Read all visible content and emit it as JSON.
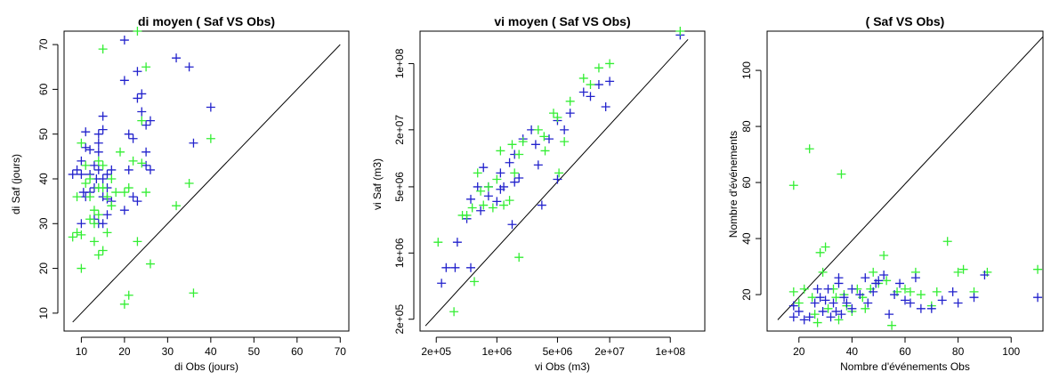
{
  "colors": {
    "series_green": "#33ee33",
    "series_blue": "#2222cc",
    "axes": "#000000"
  },
  "chart_data": [
    {
      "type": "scatter",
      "title": "di moyen ( Saf  VS  Obs)",
      "xlabel": "di Obs  (jours)",
      "ylabel": "di Saf  (jours)",
      "xlim": [
        6,
        72
      ],
      "ylim": [
        6,
        73
      ],
      "xticks": [
        10,
        20,
        30,
        40,
        50,
        60,
        70
      ],
      "yticks": [
        10,
        20,
        30,
        40,
        50,
        60,
        70
      ],
      "xtick_labels": [
        "10",
        "20",
        "30",
        "40",
        "50",
        "60",
        "70"
      ],
      "ytick_labels": [
        "10",
        "20",
        "30",
        "40",
        "50",
        "60",
        "70"
      ],
      "log": false,
      "reference_line": [
        [
          8,
          8
        ],
        [
          70,
          70
        ]
      ],
      "series": [
        {
          "color": "#2222cc",
          "points": [
            [
              8,
              41
            ],
            [
              9,
              42
            ],
            [
              10,
              30
            ],
            [
              10,
              41
            ],
            [
              10,
              44
            ],
            [
              10.5,
              37
            ],
            [
              11,
              47
            ],
            [
              11,
              36
            ],
            [
              11,
              50.5
            ],
            [
              12,
              46.5
            ],
            [
              12,
              41
            ],
            [
              12,
              37
            ],
            [
              13,
              43
            ],
            [
              13,
              38
            ],
            [
              13,
              31
            ],
            [
              13.5,
              40
            ],
            [
              14,
              50
            ],
            [
              14,
              48
            ],
            [
              14,
              46
            ],
            [
              14,
              42
            ],
            [
              14,
              30
            ],
            [
              15,
              54
            ],
            [
              15,
              51
            ],
            [
              15,
              40
            ],
            [
              15,
              36
            ],
            [
              15,
              30
            ],
            [
              16,
              38
            ],
            [
              16,
              35.5
            ],
            [
              16,
              41
            ],
            [
              16,
              32
            ],
            [
              17,
              35
            ],
            [
              17,
              42
            ],
            [
              20,
              71
            ],
            [
              20,
              62
            ],
            [
              20,
              33
            ],
            [
              21,
              50
            ],
            [
              21,
              42
            ],
            [
              22,
              36
            ],
            [
              22,
              49
            ],
            [
              23,
              64
            ],
            [
              23,
              58
            ],
            [
              23,
              35
            ],
            [
              24,
              59
            ],
            [
              24,
              55
            ],
            [
              25,
              46
            ],
            [
              25,
              43
            ],
            [
              25,
              52
            ],
            [
              26,
              42
            ],
            [
              26,
              53
            ],
            [
              32,
              67
            ],
            [
              35,
              65
            ],
            [
              36,
              48
            ],
            [
              40,
              56
            ]
          ]
        },
        {
          "color": "#33ee33",
          "points": [
            [
              8,
              27
            ],
            [
              9,
              36
            ],
            [
              9,
              28
            ],
            [
              10,
              27.5
            ],
            [
              10,
              20
            ],
            [
              10,
              48
            ],
            [
              11,
              43
            ],
            [
              11,
              39
            ],
            [
              12,
              31
            ],
            [
              12,
              36
            ],
            [
              12,
              40
            ],
            [
              13,
              30
            ],
            [
              13,
              26
            ],
            [
              13,
              33
            ],
            [
              14,
              44
            ],
            [
              14,
              38
            ],
            [
              14,
              32
            ],
            [
              14,
              23
            ],
            [
              15,
              69
            ],
            [
              15,
              43
            ],
            [
              15,
              38
            ],
            [
              15,
              24
            ],
            [
              16,
              28
            ],
            [
              16,
              36
            ],
            [
              17,
              34
            ],
            [
              17,
              40
            ],
            [
              18,
              37
            ],
            [
              19,
              46
            ],
            [
              20,
              37
            ],
            [
              20,
              12
            ],
            [
              21,
              14
            ],
            [
              21,
              38
            ],
            [
              22,
              44
            ],
            [
              23,
              73
            ],
            [
              23,
              26
            ],
            [
              24,
              53
            ],
            [
              24,
              43.5
            ],
            [
              25,
              37
            ],
            [
              25,
              65
            ],
            [
              26,
              21
            ],
            [
              32,
              34
            ],
            [
              35,
              39
            ],
            [
              36,
              14.5
            ],
            [
              40,
              49
            ]
          ]
        }
      ]
    },
    {
      "type": "scatter",
      "title": "vi moyen ( Saf  VS  Obs)",
      "xlabel": "vi Obs  (m3)",
      "ylabel": "vi Saf  (m3)",
      "xlim": [
        130000,
        250000000
      ],
      "ylim": [
        150000,
        220000000
      ],
      "xticks": [
        200000,
        1000000,
        5000000,
        20000000,
        100000000
      ],
      "yticks": [
        200000,
        1000000,
        5000000,
        20000000,
        100000000
      ],
      "xtick_labels": [
        "2e+05",
        "1e+06",
        "5e+06",
        "2e+07",
        "1e+08"
      ],
      "ytick_labels": [
        "2e+05",
        "1e+06",
        "5e+06",
        "2e+07",
        "1e+08"
      ],
      "log": true,
      "reference_line": [
        [
          150000,
          170000
        ],
        [
          160000000,
          180000000
        ]
      ],
      "series": [
        {
          "color": "#2222cc",
          "points": [
            [
              230000,
              480000
            ],
            [
              260000,
              700000
            ],
            [
              330000,
              700000
            ],
            [
              350000,
              1300000
            ],
            [
              450000,
              2300000
            ],
            [
              500000,
              3700000
            ],
            [
              500000,
              700000
            ],
            [
              600000,
              5000000
            ],
            [
              650000,
              2800000
            ],
            [
              700000,
              8000000
            ],
            [
              800000,
              5000000
            ],
            [
              800000,
              4000000
            ],
            [
              1000000,
              3500000
            ],
            [
              1100000,
              7000000
            ],
            [
              1100000,
              4700000
            ],
            [
              1200000,
              5000000
            ],
            [
              1400000,
              9000000
            ],
            [
              1500000,
              2000000
            ],
            [
              1600000,
              11000000
            ],
            [
              1600000,
              5600000
            ],
            [
              1800000,
              6200000
            ],
            [
              2000000,
              16000000
            ],
            [
              2500000,
              20000000
            ],
            [
              2800000,
              14000000
            ],
            [
              3000000,
              8500000
            ],
            [
              3300000,
              3200000
            ],
            [
              4000000,
              16000000
            ],
            [
              5000000,
              25000000
            ],
            [
              5000000,
              6000000
            ],
            [
              6000000,
              20000000
            ],
            [
              7000000,
              30000000
            ],
            [
              10000000,
              50000000
            ],
            [
              12000000,
              45000000
            ],
            [
              15000000,
              60000000
            ],
            [
              18000000,
              35000000
            ],
            [
              20000000,
              65000000
            ],
            [
              130000000,
              200000000
            ]
          ]
        },
        {
          "color": "#33ee33",
          "points": [
            [
              210000,
              1300000
            ],
            [
              320000,
              240000
            ],
            [
              400000,
              2500000
            ],
            [
              450000,
              2500000
            ],
            [
              520000,
              3000000
            ],
            [
              550000,
              500000
            ],
            [
              600000,
              7000000
            ],
            [
              650000,
              4500000
            ],
            [
              700000,
              3200000
            ],
            [
              800000,
              5000000
            ],
            [
              900000,
              3000000
            ],
            [
              1000000,
              6000000
            ],
            [
              1100000,
              12000000
            ],
            [
              1200000,
              3200000
            ],
            [
              1400000,
              3600000
            ],
            [
              1500000,
              14000000
            ],
            [
              1600000,
              7000000
            ],
            [
              1800000,
              11000000
            ],
            [
              2000000,
              15000000
            ],
            [
              1800000,
              900000
            ],
            [
              3000000,
              20000000
            ],
            [
              3500000,
              17000000
            ],
            [
              3600000,
              12000000
            ],
            [
              4500000,
              30000000
            ],
            [
              5000000,
              27000000
            ],
            [
              5200000,
              7000000
            ],
            [
              6000000,
              15000000
            ],
            [
              7000000,
              40000000
            ],
            [
              10000000,
              70000000
            ],
            [
              12000000,
              60000000
            ],
            [
              15000000,
              90000000
            ],
            [
              20000000,
              100000000
            ],
            [
              130000000,
              220000000
            ]
          ]
        }
      ]
    },
    {
      "type": "scatter",
      "title": "( Saf  VS  Obs)",
      "xlabel": "Nombre d'événements  Obs",
      "ylabel": "Nombre d'événements",
      "xlim": [
        8,
        112
      ],
      "ylim": [
        7,
        114
      ],
      "xticks": [
        20,
        40,
        60,
        80,
        100
      ],
      "yticks": [
        20,
        40,
        60,
        80,
        100
      ],
      "xtick_labels": [
        "20",
        "40",
        "60",
        "80",
        "100"
      ],
      "ytick_labels": [
        "20",
        "40",
        "60",
        "80",
        "100"
      ],
      "log": false,
      "reference_line": [
        [
          12,
          11
        ],
        [
          112,
          112
        ]
      ],
      "series": [
        {
          "color": "#33ee33",
          "points": [
            [
              18,
              59
            ],
            [
              18,
              21
            ],
            [
              20,
              17
            ],
            [
              22,
              22
            ],
            [
              24,
              72
            ],
            [
              25,
              19
            ],
            [
              26,
              13
            ],
            [
              27,
              10
            ],
            [
              28,
              35
            ],
            [
              29,
              28
            ],
            [
              30,
              37
            ],
            [
              31,
              15
            ],
            [
              33,
              22
            ],
            [
              34,
              19
            ],
            [
              35,
              11
            ],
            [
              36,
              63
            ],
            [
              37,
              20
            ],
            [
              38,
              16
            ],
            [
              40,
              14
            ],
            [
              42,
              22
            ],
            [
              44,
              19
            ],
            [
              45,
              15
            ],
            [
              47,
              22
            ],
            [
              48,
              28
            ],
            [
              50,
              24
            ],
            [
              52,
              34
            ],
            [
              53,
              25
            ],
            [
              55,
              9
            ],
            [
              57,
              21
            ],
            [
              60,
              22
            ],
            [
              62,
              21
            ],
            [
              64,
              28
            ],
            [
              66,
              20
            ],
            [
              70,
              16
            ],
            [
              72,
              21
            ],
            [
              76,
              39
            ],
            [
              80,
              28
            ],
            [
              82,
              29
            ],
            [
              86,
              21
            ],
            [
              91,
              28
            ],
            [
              110,
              29
            ]
          ]
        },
        {
          "color": "#2222cc",
          "points": [
            [
              18,
              16
            ],
            [
              18,
              12
            ],
            [
              20,
              14
            ],
            [
              22,
              11
            ],
            [
              24,
              12
            ],
            [
              26,
              17
            ],
            [
              27,
              22
            ],
            [
              28,
              19
            ],
            [
              29,
              14
            ],
            [
              30,
              18
            ],
            [
              31,
              22
            ],
            [
              32,
              12
            ],
            [
              33,
              17
            ],
            [
              34,
              14
            ],
            [
              35,
              26
            ],
            [
              35,
              24
            ],
            [
              36,
              13
            ],
            [
              37,
              19
            ],
            [
              38,
              17
            ],
            [
              40,
              15
            ],
            [
              40,
              22
            ],
            [
              43,
              20
            ],
            [
              45,
              26
            ],
            [
              46,
              17
            ],
            [
              48,
              21
            ],
            [
              49,
              24
            ],
            [
              50,
              25
            ],
            [
              52,
              27
            ],
            [
              54,
              13
            ],
            [
              56,
              20
            ],
            [
              58,
              24
            ],
            [
              60,
              18
            ],
            [
              62,
              17
            ],
            [
              64,
              26
            ],
            [
              66,
              15
            ],
            [
              70,
              15
            ],
            [
              74,
              18
            ],
            [
              78,
              21
            ],
            [
              80,
              17
            ],
            [
              86,
              19
            ],
            [
              90,
              27
            ],
            [
              110,
              19
            ]
          ]
        }
      ]
    }
  ]
}
